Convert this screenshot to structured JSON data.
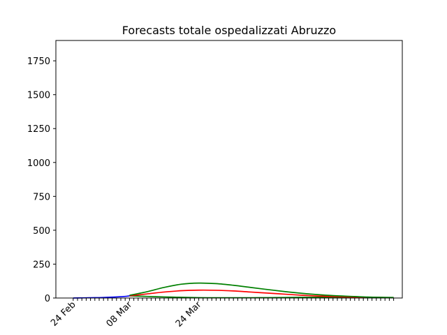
{
  "chart_data": {
    "type": "line",
    "title": "Forecasts totale ospedalizzati Abruzzo",
    "xlabel": "",
    "ylabel": "",
    "ylim": [
      0,
      1900
    ],
    "yticks": [
      0,
      250,
      500,
      750,
      1000,
      1250,
      1500,
      1750
    ],
    "x_tick_labels": [
      "24 Feb",
      "08 Mar",
      "24 Mar"
    ],
    "grid": false,
    "legend": "none",
    "observed": {
      "color": "#0000ff",
      "x": [
        "24 Feb",
        "26 Feb",
        "28 Feb",
        "01 Mar",
        "03 Mar",
        "05 Mar",
        "07 Mar",
        "08 Mar"
      ],
      "y": [
        0,
        1,
        2,
        3,
        5,
        8,
        12,
        16
      ]
    },
    "forecast_center": {
      "color": "#ff0000",
      "x": [
        "08 Mar",
        "12 Mar",
        "16 Mar",
        "20 Mar",
        "24 Mar",
        "28 Mar",
        "01 Apr",
        "05 Apr",
        "09 Apr",
        "13 Apr",
        "17 Apr",
        "21 Apr",
        "25 Apr",
        "29 Apr",
        "02 May",
        "05 May",
        "08 May"
      ],
      "y": [
        16,
        30,
        44,
        54,
        58,
        57,
        52,
        44,
        36,
        28,
        20,
        14,
        10,
        7,
        5,
        4,
        3
      ]
    },
    "forecast_upper": {
      "color": "#008000",
      "x": [
        "08 Mar",
        "12 Mar",
        "16 Mar",
        "20 Mar",
        "24 Mar",
        "28 Mar",
        "01 Apr",
        "05 Apr",
        "09 Apr",
        "13 Apr",
        "17 Apr",
        "21 Apr",
        "25 Apr",
        "29 Apr",
        "02 May",
        "05 May",
        "08 May"
      ],
      "y": [
        20,
        46,
        78,
        102,
        110,
        106,
        94,
        78,
        62,
        47,
        34,
        24,
        16,
        11,
        7,
        5,
        4
      ]
    },
    "forecast_lower": {
      "color": "#008000",
      "x": [
        "08 Mar",
        "12 Mar",
        "16 Mar",
        "20 Mar",
        "24 Mar",
        "28 Mar",
        "01 Apr",
        "05 Apr",
        "09 Apr",
        "13 Apr",
        "17 Apr",
        "21 Apr",
        "25 Apr",
        "29 Apr",
        "02 May",
        "05 May",
        "08 May"
      ],
      "y": [
        16,
        12,
        8,
        5,
        3,
        2,
        2,
        2,
        3,
        4,
        5,
        6,
        6,
        5,
        4,
        3,
        3
      ]
    }
  }
}
